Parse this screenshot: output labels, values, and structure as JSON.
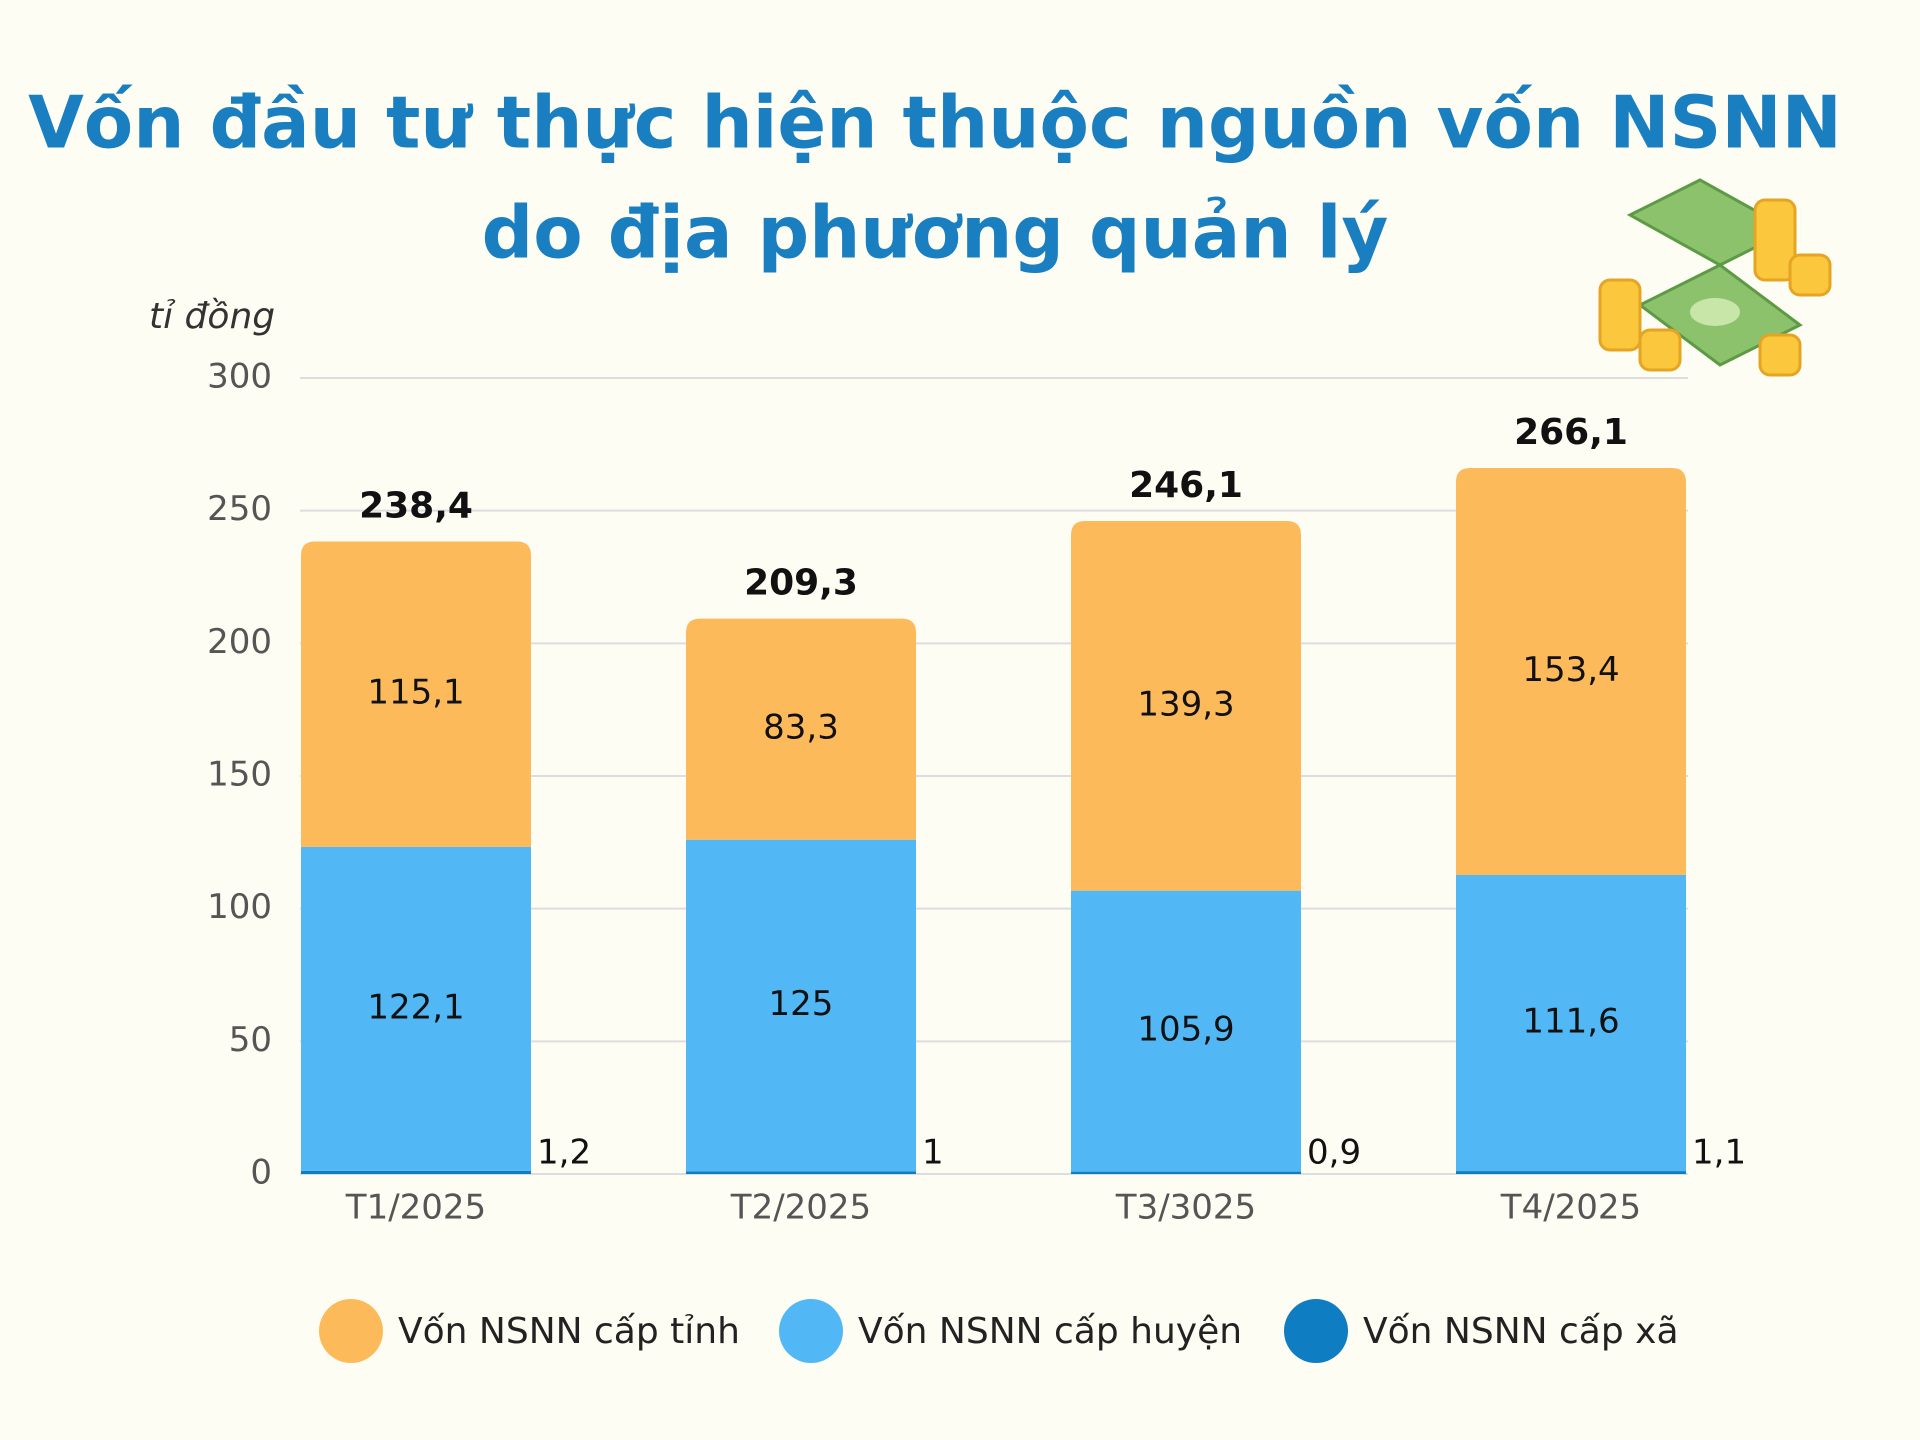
{
  "chart_data": {
    "type": "stacked-bar",
    "title": [
      "Vốn đầu tư thực hiện thuộc nguồn vốn NSNN",
      "do địa phương quản lý"
    ],
    "y_label": "tỉ đồng",
    "categories": [
      "T1/2025",
      "T2/2025",
      "T3/3025",
      "T4/2025"
    ],
    "series": [
      {
        "name": "Vốn NSNN cấp tỉnh",
        "color": "#fdba5b",
        "values": [
          115.1,
          83.3,
          139.3,
          153.4
        ],
        "value_labels": [
          "115,1",
          "83,3",
          "139,3",
          "153,4"
        ]
      },
      {
        "name": "Vốn NSNN cấp huyện",
        "color": "#51b8f5",
        "values": [
          122.1,
          125,
          105.9,
          111.6
        ],
        "value_labels": [
          "122,1",
          "125",
          "105,9",
          "111,6"
        ]
      },
      {
        "name": "Vốn NSNN cấp xã",
        "color": "#0f7dc2",
        "values": [
          1.2,
          1,
          0.9,
          1.1
        ],
        "value_labels": [
          "1,2",
          "1",
          "0,9",
          "1,1"
        ]
      }
    ],
    "totals": [
      238.4,
      209.3,
      246.1,
      266.1
    ],
    "total_labels": [
      "238,4",
      "209,3",
      "246,1",
      "266,1"
    ],
    "ylim": [
      0,
      300
    ],
    "yticks": [
      0,
      50,
      100,
      150,
      200,
      250,
      300
    ],
    "grid": true
  }
}
